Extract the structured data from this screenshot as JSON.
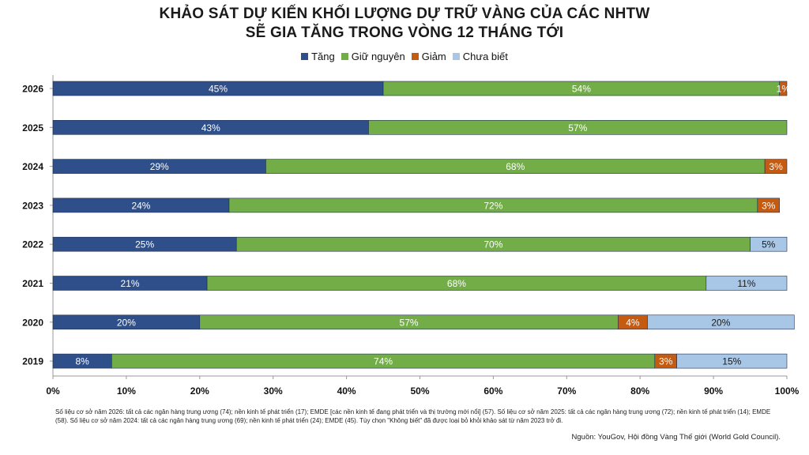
{
  "chart_data": {
    "type": "bar",
    "orientation": "horizontal",
    "stacked": true,
    "title_lines": [
      "KHẢO SÁT DỰ KIẾN KHỐI LƯỢNG DỰ TRỮ VÀNG CỦA CÁC NHTW",
      "SẼ GIA TĂNG TRONG VÒNG 12 THÁNG TỚI"
    ],
    "categories": [
      "2026",
      "2025",
      "2024",
      "2023",
      "2022",
      "2021",
      "2020",
      "2019"
    ],
    "series": [
      {
        "name": "Tăng",
        "color": "#2e4f8a",
        "values": [
          45,
          43,
          29,
          24,
          25,
          21,
          20,
          8
        ]
      },
      {
        "name": "Giữ nguyên",
        "color": "#72ad47",
        "values": [
          54,
          57,
          68,
          72,
          70,
          68,
          57,
          74
        ]
      },
      {
        "name": "Giảm",
        "color": "#c55a11",
        "values": [
          1,
          0,
          3,
          3,
          0,
          0,
          4,
          3
        ]
      },
      {
        "name": "Chưa biết",
        "color": "#a8c6e6",
        "values": [
          0,
          0,
          0,
          0,
          5,
          11,
          20,
          15
        ]
      }
    ],
    "xlim": [
      0,
      100
    ],
    "xticks": [
      "0%",
      "10%",
      "20%",
      "30%",
      "40%",
      "50%",
      "60%",
      "70%",
      "80%",
      "90%",
      "100%"
    ],
    "legend_position": "top",
    "grid": false
  },
  "footnote": "Số liệu cơ sở năm 2026: tất cả các ngân hàng trung ương (74); nền kinh tế phát triển (17); EMDE  [các nền kinh tế đang phát triển và thị trường mới nổi] (57). Số liệu cơ sở năm 2025: tất cả các ngân hàng trung ương (72); nền kinh tế phát triển (14); EMDE  (58). Số liệu cơ sở năm 2024: tất cả các ngân hàng trung ương (69); nền kinh tế phát triển (24); EMDE  (45). Tùy chọn \"Không biết\" đã được loại bỏ khỏi khảo sát từ năm 2023 trở đi.",
  "source": "Nguồn: YouGov, Hội đồng Vàng Thế giới (World Gold Council)."
}
